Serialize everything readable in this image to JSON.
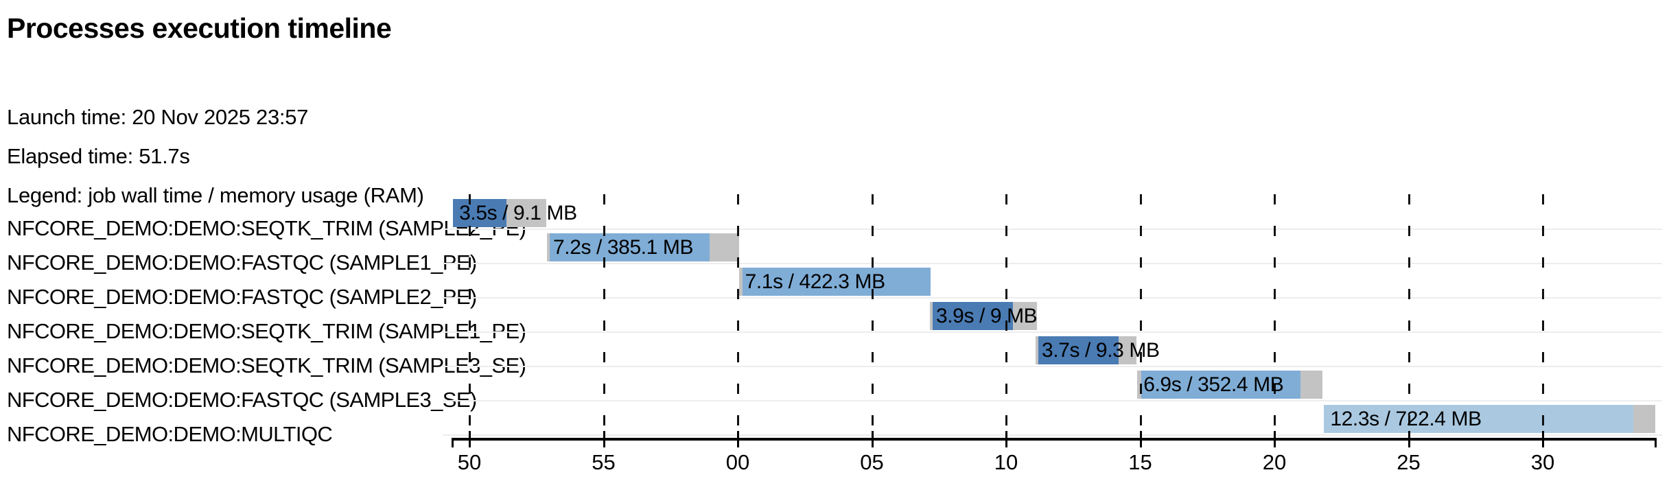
{
  "header": {
    "title": "Processes execution timeline",
    "launch_time": "Launch time: 20 Nov 2025 23:57",
    "elapsed_time": "Elapsed time: 51.7s",
    "legend": "Legend: job wall time / memory usage (RAM)"
  },
  "colors": {
    "run_dark": "#4a7bb3",
    "run_medium": "#7fadd6",
    "run_pale": "#aac9e1",
    "pending_gray": "#c3c3c3",
    "gridline": "#111111",
    "row_separator": "#ededed",
    "axis": "#000000",
    "text": "#000000"
  },
  "chart_data": {
    "type": "bar",
    "subtype": "gantt-timeline",
    "title": "Processes execution timeline",
    "time_unit": "seconds after 23:57:00",
    "legend": "job wall time / memory usage (RAM)",
    "grid": "dashed-vertical",
    "axis": {
      "domain": [
        49.38,
        94.2
      ],
      "ticks": [
        50,
        55,
        60,
        65,
        70,
        75,
        80,
        85,
        90
      ],
      "tick_labels": [
        "50",
        "55",
        "00",
        "05",
        "10",
        "15",
        "20",
        "25",
        "30"
      ]
    },
    "tasks": [
      {
        "process": "NFCORE_DEMO:DEMO:SEQTK_TRIM (SAMPLE2_PE)",
        "label": "3.5s / 9.1 MB",
        "wall_time": "3.5s",
        "memory": "9.1 MB",
        "shade": "dark",
        "start": 49.39,
        "run_start": 49.39,
        "run_end": 51.38,
        "end": 52.87
      },
      {
        "process": "NFCORE_DEMO:DEMO:FASTQC (SAMPLE1_PE)",
        "label": "7.2s / 385.1 MB",
        "wall_time": "7.2s",
        "memory": "385.1 MB",
        "shade": "medium",
        "start": 52.89,
        "run_start": 53.0,
        "run_end": 58.94,
        "end": 60.06
      },
      {
        "process": "NFCORE_DEMO:DEMO:FASTQC (SAMPLE2_PE)",
        "label": "7.1s / 422.3 MB",
        "wall_time": "7.1s",
        "memory": "422.3 MB",
        "shade": "medium",
        "start": 60.04,
        "run_start": 60.19,
        "run_end": 67.18,
        "end": 67.18
      },
      {
        "process": "NFCORE_DEMO:DEMO:SEQTK_TRIM (SAMPLE1_PE)",
        "label": "3.9s / 9 MB",
        "wall_time": "3.9s",
        "memory": "9 MB",
        "shade": "dark",
        "start": 67.16,
        "run_start": 67.26,
        "run_end": 70.25,
        "end": 71.15
      },
      {
        "process": "NFCORE_DEMO:DEMO:SEQTK_TRIM (SAMPLE3_SE)",
        "label": "3.7s / 9.3 MB",
        "wall_time": "3.7s",
        "memory": "9.3 MB",
        "shade": "dark",
        "start": 71.1,
        "run_start": 71.2,
        "run_end": 74.2,
        "end": 74.86
      },
      {
        "process": "NFCORE_DEMO:DEMO:FASTQC (SAMPLE3_SE)",
        "label": "6.9s / 352.4 MB",
        "wall_time": "6.9s",
        "memory": "352.4 MB",
        "shade": "medium",
        "start": 74.89,
        "run_start": 75.04,
        "run_end": 80.96,
        "end": 81.78
      },
      {
        "process": "NFCORE_DEMO:DEMO:MULTIQC",
        "label": "12.3s / 722.4 MB",
        "wall_time": "12.3s",
        "memory": "722.4 MB",
        "shade": "pale",
        "start": 81.85,
        "run_start": 81.85,
        "run_end": 93.37,
        "end": 94.19
      }
    ]
  }
}
